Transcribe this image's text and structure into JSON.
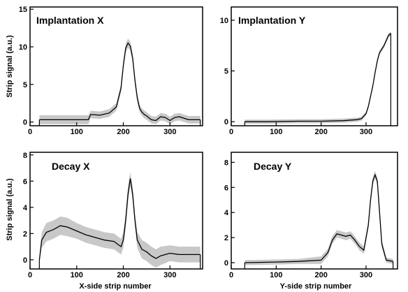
{
  "chart_data": [
    {
      "type": "line",
      "title": "Implantation X",
      "xlabel": "",
      "ylabel": "Strip signal (a.u.)",
      "xlim": [
        0,
        370
      ],
      "ylim": [
        -0.5,
        15.3
      ],
      "xticks": [
        0,
        100,
        200,
        300
      ],
      "yticks": [
        0,
        5,
        10,
        15
      ],
      "tick_labels_x": [
        "0",
        "100",
        "200",
        "300"
      ],
      "tick_labels_y": [
        "0",
        "5",
        "10",
        "15"
      ],
      "line_color": "#000000",
      "band_color": "#c8c8c8",
      "series": [
        {
          "x": [
            20,
            60,
            100,
            125,
            130,
            150,
            170,
            185,
            195,
            200,
            205,
            210,
            215,
            220,
            225,
            230,
            235,
            240,
            245,
            250,
            260,
            270,
            280,
            290,
            300,
            310,
            320,
            340,
            355,
            365
          ],
          "y": [
            0.3,
            0.3,
            0.3,
            0.3,
            1.0,
            0.9,
            1.2,
            2.0,
            4.5,
            7.5,
            9.8,
            10.5,
            10.1,
            8.5,
            5.5,
            3.2,
            1.8,
            1.3,
            1.0,
            0.8,
            0.3,
            0.2,
            0.7,
            0.6,
            0.2,
            0.6,
            0.7,
            0.3,
            0.3,
            0.3
          ],
          "band": [
            0.6,
            0.6,
            0.6,
            0.6,
            0.5,
            0.5,
            0.5,
            0.5,
            0.5,
            0.6,
            0.6,
            0.6,
            0.6,
            0.6,
            0.6,
            0.5,
            0.5,
            0.5,
            0.5,
            0.5,
            0.5,
            0.5,
            0.5,
            0.5,
            0.5,
            0.5,
            0.5,
            0.5,
            0.5,
            0.5
          ]
        }
      ]
    },
    {
      "type": "line",
      "title": "Implantation Y",
      "xlabel": "",
      "ylabel": "",
      "xlim": [
        0,
        370
      ],
      "ylim": [
        -0.4,
        11.3
      ],
      "xticks": [
        0,
        100,
        200,
        300
      ],
      "yticks": [
        0,
        5,
        10
      ],
      "tick_labels_x": [
        "0",
        "100",
        "200",
        "300"
      ],
      "tick_labels_y": [
        "0",
        "5",
        "10"
      ],
      "line_color": "#000000",
      "band_color": "#c8c8c8",
      "series": [
        {
          "x": [
            30,
            80,
            150,
            200,
            250,
            280,
            290,
            300,
            305,
            310,
            315,
            320,
            325,
            330,
            340,
            350,
            355
          ],
          "y": [
            0.0,
            0.0,
            0.05,
            0.05,
            0.1,
            0.2,
            0.3,
            0.8,
            1.5,
            2.5,
            3.5,
            4.8,
            6.0,
            6.8,
            7.5,
            8.5,
            8.7
          ],
          "band": [
            0.2,
            0.2,
            0.2,
            0.2,
            0.2,
            0.2,
            0.2,
            0.2,
            0.2,
            0.2,
            0.2,
            0.2,
            0.2,
            0.2,
            0.2,
            0.2,
            0.2
          ]
        }
      ]
    },
    {
      "type": "line",
      "title": "Decay X",
      "xlabel": "X-side strip number",
      "ylabel": "Strip signal (a.u.)",
      "xlim": [
        0,
        370
      ],
      "ylim": [
        -0.7,
        8.2
      ],
      "xticks": [
        0,
        100,
        200,
        300
      ],
      "yticks": [
        0,
        2,
        4,
        6,
        8
      ],
      "tick_labels_x": [
        "0",
        "100",
        "200",
        "300"
      ],
      "tick_labels_y": [
        "0",
        "2",
        "4",
        "6",
        "8"
      ],
      "line_color": "#000000",
      "band_color": "#c8c8c8",
      "series": [
        {
          "x": [
            20,
            25,
            35,
            50,
            65,
            80,
            100,
            120,
            140,
            160,
            180,
            195,
            200,
            205,
            210,
            215,
            220,
            225,
            230,
            240,
            250,
            260,
            270,
            280,
            300,
            320,
            340,
            360,
            365
          ],
          "y": [
            0.0,
            1.5,
            2.1,
            2.3,
            2.6,
            2.5,
            2.2,
            1.9,
            1.7,
            1.5,
            1.4,
            1.0,
            1.5,
            3.0,
            5.0,
            6.2,
            5.0,
            3.0,
            1.5,
            0.8,
            0.6,
            0.3,
            0.1,
            0.3,
            0.5,
            0.4,
            0.4,
            0.4,
            0.4
          ],
          "band": [
            0.2,
            0.6,
            0.7,
            0.7,
            0.7,
            0.7,
            0.6,
            0.6,
            0.6,
            0.6,
            0.6,
            0.6,
            0.6,
            0.6,
            0.6,
            0.5,
            0.5,
            0.5,
            0.6,
            0.7,
            0.7,
            0.7,
            0.7,
            0.7,
            0.6,
            0.6,
            0.6,
            0.6,
            0.6
          ]
        }
      ]
    },
    {
      "type": "line",
      "title": "Decay Y",
      "xlabel": "Y-side strip number",
      "ylabel": "",
      "xlim": [
        0,
        370
      ],
      "ylim": [
        -0.5,
        8.8
      ],
      "xticks": [
        0,
        100,
        200,
        300
      ],
      "yticks": [
        0,
        2,
        4,
        6,
        8
      ],
      "tick_labels_x": [
        "0",
        "100",
        "200",
        "300"
      ],
      "tick_labels_y": [
        "0",
        "2",
        "4",
        "6",
        "8"
      ],
      "line_color": "#000000",
      "band_color": "#c8c8c8",
      "series": [
        {
          "x": [
            30,
            100,
            150,
            200,
            215,
            225,
            235,
            245,
            255,
            265,
            275,
            285,
            295,
            305,
            310,
            315,
            320,
            325,
            330,
            335,
            345,
            360
          ],
          "y": [
            0.0,
            0.05,
            0.1,
            0.2,
            0.8,
            1.8,
            2.3,
            2.2,
            2.1,
            2.2,
            1.8,
            1.3,
            1.0,
            3.0,
            5.0,
            6.5,
            7.0,
            6.5,
            4.0,
            1.5,
            0.2,
            0.1
          ],
          "band": [
            0.2,
            0.2,
            0.2,
            0.3,
            0.3,
            0.3,
            0.3,
            0.3,
            0.3,
            0.3,
            0.3,
            0.3,
            0.3,
            0.3,
            0.3,
            0.3,
            0.3,
            0.3,
            0.3,
            0.3,
            0.2,
            0.2
          ]
        }
      ]
    }
  ]
}
